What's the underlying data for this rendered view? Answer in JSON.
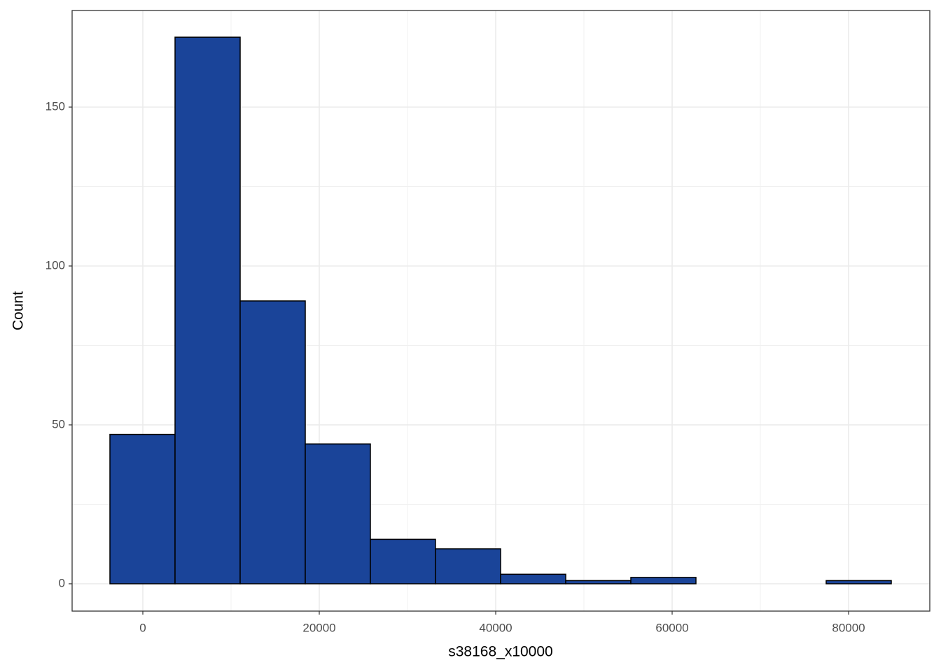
{
  "chart_data": {
    "type": "histogram",
    "x_label": "s38168_x10000",
    "y_label": "Count",
    "bins": [
      -3730,
      3651,
      11032,
      18413,
      25794,
      33175,
      40556,
      47937,
      55318,
      62699,
      70080,
      77461,
      84842
    ],
    "values": [
      47,
      172,
      89,
      44,
      14,
      11,
      3,
      1,
      2,
      0,
      0,
      1
    ],
    "color": "#1a4499",
    "xlim": [
      -8016,
      89206
    ],
    "ylim": [
      -8.6,
      180.4
    ],
    "xticks": [
      0,
      20000,
      40000,
      60000,
      80000
    ],
    "yticks": [
      0,
      50,
      100,
      150
    ],
    "grid": true
  }
}
